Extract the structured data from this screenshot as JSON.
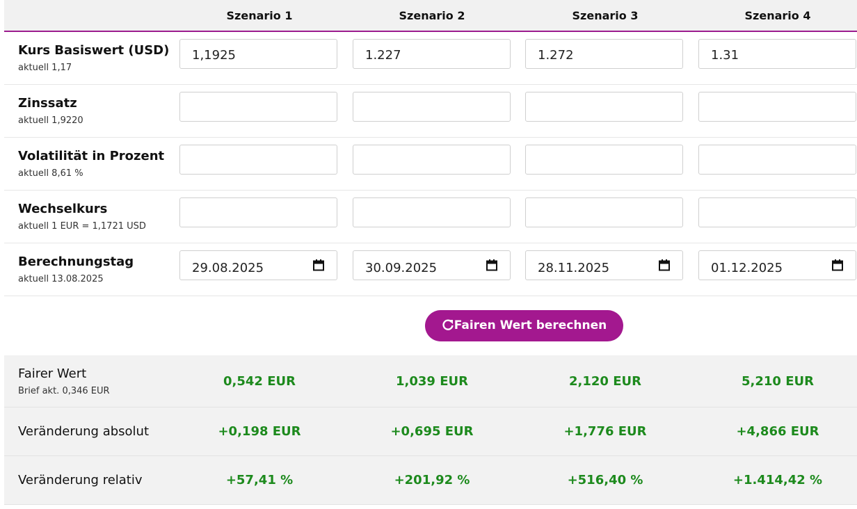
{
  "header": {
    "columns": [
      "Szenario 1",
      "Szenario 2",
      "Szenario 3",
      "Szenario 4"
    ]
  },
  "inputs": [
    {
      "label": "Kurs Basiswert (USD)",
      "hint": "aktuell 1,17",
      "values": [
        "1,1925",
        "1.227",
        "1.272",
        "1.31"
      ]
    },
    {
      "label": "Zinssatz",
      "hint": "aktuell 1,9220"
    },
    {
      "label": "Volatilität in Prozent",
      "hint": "aktuell 8,61 %"
    },
    {
      "label": "Wechselkurs",
      "hint": "aktuell 1 EUR = 1,1721 USD"
    },
    {
      "label": "Berechnungstag",
      "hint": "aktuell 13.08.2025",
      "dates": [
        "29.08.2025",
        "30.09.2025",
        "28.11.2025",
        "01.12.2025"
      ]
    }
  ],
  "button": {
    "label": "Fairen Wert berechnen"
  },
  "results": [
    {
      "label": "Fairer Wert",
      "hint": "Brief akt. 0,346 EUR",
      "values": [
        "0,542 EUR",
        "1,039 EUR",
        "2,120 EUR",
        "5,210 EUR"
      ]
    },
    {
      "label": "Veränderung absolut",
      "values": [
        "+0,198 EUR",
        "+0,695 EUR",
        "+1,776 EUR",
        "+4,866 EUR"
      ]
    },
    {
      "label": "Veränderung relativ",
      "values": [
        "+57,41 %",
        "+201,92 %",
        "+516,40 %",
        "+1.414,42 %"
      ]
    }
  ]
}
